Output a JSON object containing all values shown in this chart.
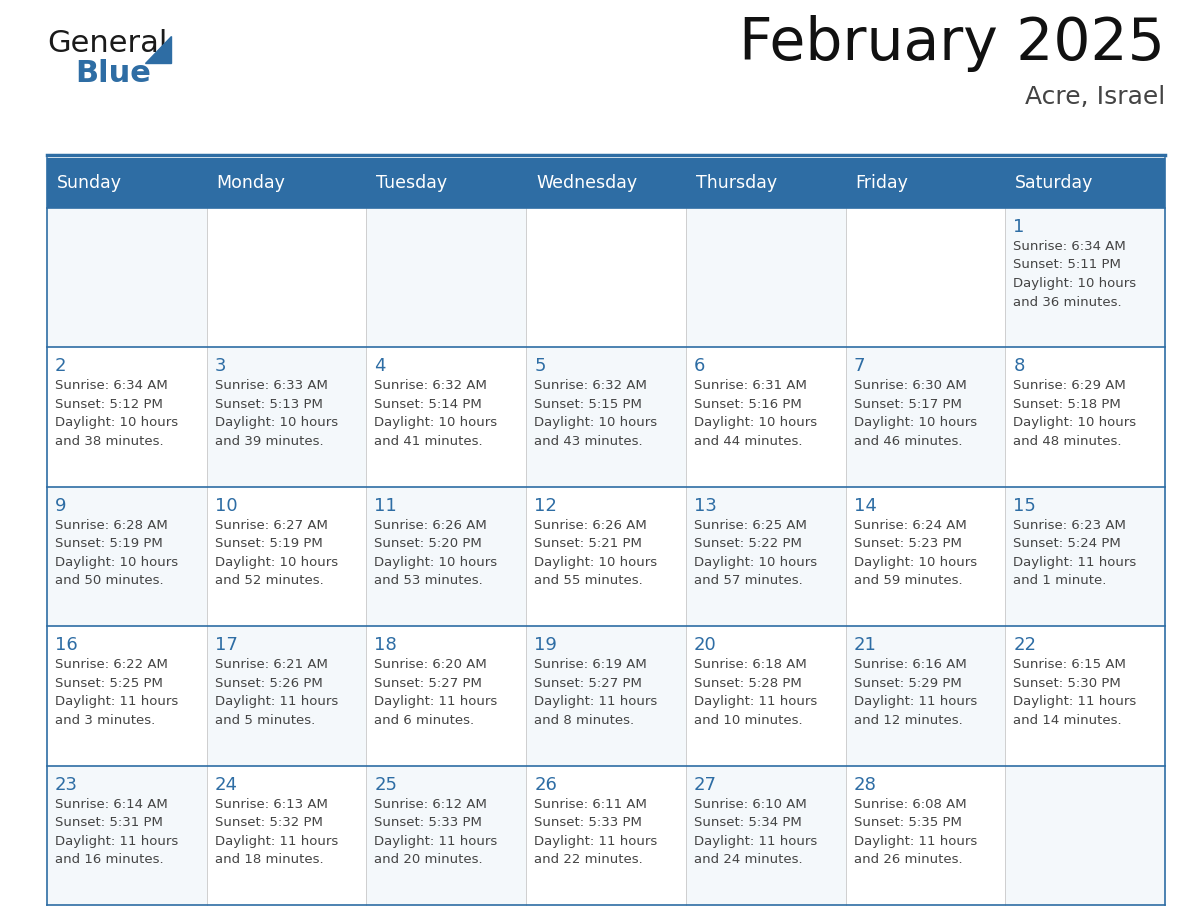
{
  "title": "February 2025",
  "subtitle": "Acre, Israel",
  "header_bg": "#2E6DA4",
  "header_text_color": "#FFFFFF",
  "grid_line_color": "#2E6DA4",
  "day_headers": [
    "Sunday",
    "Monday",
    "Tuesday",
    "Wednesday",
    "Thursday",
    "Friday",
    "Saturday"
  ],
  "title_color": "#111111",
  "subtitle_color": "#444444",
  "day_number_color": "#2E6DA4",
  "cell_text_color": "#444444",
  "cell_bg": "#F4F8FB",
  "logo_general_color": "#1a1a1a",
  "logo_blue_color": "#2E6DA4",
  "logo_triangle_color": "#2E6DA4",
  "calendar_data": [
    [
      null,
      null,
      null,
      null,
      null,
      null,
      {
        "day": "1",
        "lines": [
          "Sunrise: 6:34 AM",
          "Sunset: 5:11 PM",
          "Daylight: 10 hours",
          "and 36 minutes."
        ]
      }
    ],
    [
      {
        "day": "2",
        "lines": [
          "Sunrise: 6:34 AM",
          "Sunset: 5:12 PM",
          "Daylight: 10 hours",
          "and 38 minutes."
        ]
      },
      {
        "day": "3",
        "lines": [
          "Sunrise: 6:33 AM",
          "Sunset: 5:13 PM",
          "Daylight: 10 hours",
          "and 39 minutes."
        ]
      },
      {
        "day": "4",
        "lines": [
          "Sunrise: 6:32 AM",
          "Sunset: 5:14 PM",
          "Daylight: 10 hours",
          "and 41 minutes."
        ]
      },
      {
        "day": "5",
        "lines": [
          "Sunrise: 6:32 AM",
          "Sunset: 5:15 PM",
          "Daylight: 10 hours",
          "and 43 minutes."
        ]
      },
      {
        "day": "6",
        "lines": [
          "Sunrise: 6:31 AM",
          "Sunset: 5:16 PM",
          "Daylight: 10 hours",
          "and 44 minutes."
        ]
      },
      {
        "day": "7",
        "lines": [
          "Sunrise: 6:30 AM",
          "Sunset: 5:17 PM",
          "Daylight: 10 hours",
          "and 46 minutes."
        ]
      },
      {
        "day": "8",
        "lines": [
          "Sunrise: 6:29 AM",
          "Sunset: 5:18 PM",
          "Daylight: 10 hours",
          "and 48 minutes."
        ]
      }
    ],
    [
      {
        "day": "9",
        "lines": [
          "Sunrise: 6:28 AM",
          "Sunset: 5:19 PM",
          "Daylight: 10 hours",
          "and 50 minutes."
        ]
      },
      {
        "day": "10",
        "lines": [
          "Sunrise: 6:27 AM",
          "Sunset: 5:19 PM",
          "Daylight: 10 hours",
          "and 52 minutes."
        ]
      },
      {
        "day": "11",
        "lines": [
          "Sunrise: 6:26 AM",
          "Sunset: 5:20 PM",
          "Daylight: 10 hours",
          "and 53 minutes."
        ]
      },
      {
        "day": "12",
        "lines": [
          "Sunrise: 6:26 AM",
          "Sunset: 5:21 PM",
          "Daylight: 10 hours",
          "and 55 minutes."
        ]
      },
      {
        "day": "13",
        "lines": [
          "Sunrise: 6:25 AM",
          "Sunset: 5:22 PM",
          "Daylight: 10 hours",
          "and 57 minutes."
        ]
      },
      {
        "day": "14",
        "lines": [
          "Sunrise: 6:24 AM",
          "Sunset: 5:23 PM",
          "Daylight: 10 hours",
          "and 59 minutes."
        ]
      },
      {
        "day": "15",
        "lines": [
          "Sunrise: 6:23 AM",
          "Sunset: 5:24 PM",
          "Daylight: 11 hours",
          "and 1 minute."
        ]
      }
    ],
    [
      {
        "day": "16",
        "lines": [
          "Sunrise: 6:22 AM",
          "Sunset: 5:25 PM",
          "Daylight: 11 hours",
          "and 3 minutes."
        ]
      },
      {
        "day": "17",
        "lines": [
          "Sunrise: 6:21 AM",
          "Sunset: 5:26 PM",
          "Daylight: 11 hours",
          "and 5 minutes."
        ]
      },
      {
        "day": "18",
        "lines": [
          "Sunrise: 6:20 AM",
          "Sunset: 5:27 PM",
          "Daylight: 11 hours",
          "and 6 minutes."
        ]
      },
      {
        "day": "19",
        "lines": [
          "Sunrise: 6:19 AM",
          "Sunset: 5:27 PM",
          "Daylight: 11 hours",
          "and 8 minutes."
        ]
      },
      {
        "day": "20",
        "lines": [
          "Sunrise: 6:18 AM",
          "Sunset: 5:28 PM",
          "Daylight: 11 hours",
          "and 10 minutes."
        ]
      },
      {
        "day": "21",
        "lines": [
          "Sunrise: 6:16 AM",
          "Sunset: 5:29 PM",
          "Daylight: 11 hours",
          "and 12 minutes."
        ]
      },
      {
        "day": "22",
        "lines": [
          "Sunrise: 6:15 AM",
          "Sunset: 5:30 PM",
          "Daylight: 11 hours",
          "and 14 minutes."
        ]
      }
    ],
    [
      {
        "day": "23",
        "lines": [
          "Sunrise: 6:14 AM",
          "Sunset: 5:31 PM",
          "Daylight: 11 hours",
          "and 16 minutes."
        ]
      },
      {
        "day": "24",
        "lines": [
          "Sunrise: 6:13 AM",
          "Sunset: 5:32 PM",
          "Daylight: 11 hours",
          "and 18 minutes."
        ]
      },
      {
        "day": "25",
        "lines": [
          "Sunrise: 6:12 AM",
          "Sunset: 5:33 PM",
          "Daylight: 11 hours",
          "and 20 minutes."
        ]
      },
      {
        "day": "26",
        "lines": [
          "Sunrise: 6:11 AM",
          "Sunset: 5:33 PM",
          "Daylight: 11 hours",
          "and 22 minutes."
        ]
      },
      {
        "day": "27",
        "lines": [
          "Sunrise: 6:10 AM",
          "Sunset: 5:34 PM",
          "Daylight: 11 hours",
          "and 24 minutes."
        ]
      },
      {
        "day": "28",
        "lines": [
          "Sunrise: 6:08 AM",
          "Sunset: 5:35 PM",
          "Daylight: 11 hours",
          "and 26 minutes."
        ]
      },
      null
    ]
  ]
}
